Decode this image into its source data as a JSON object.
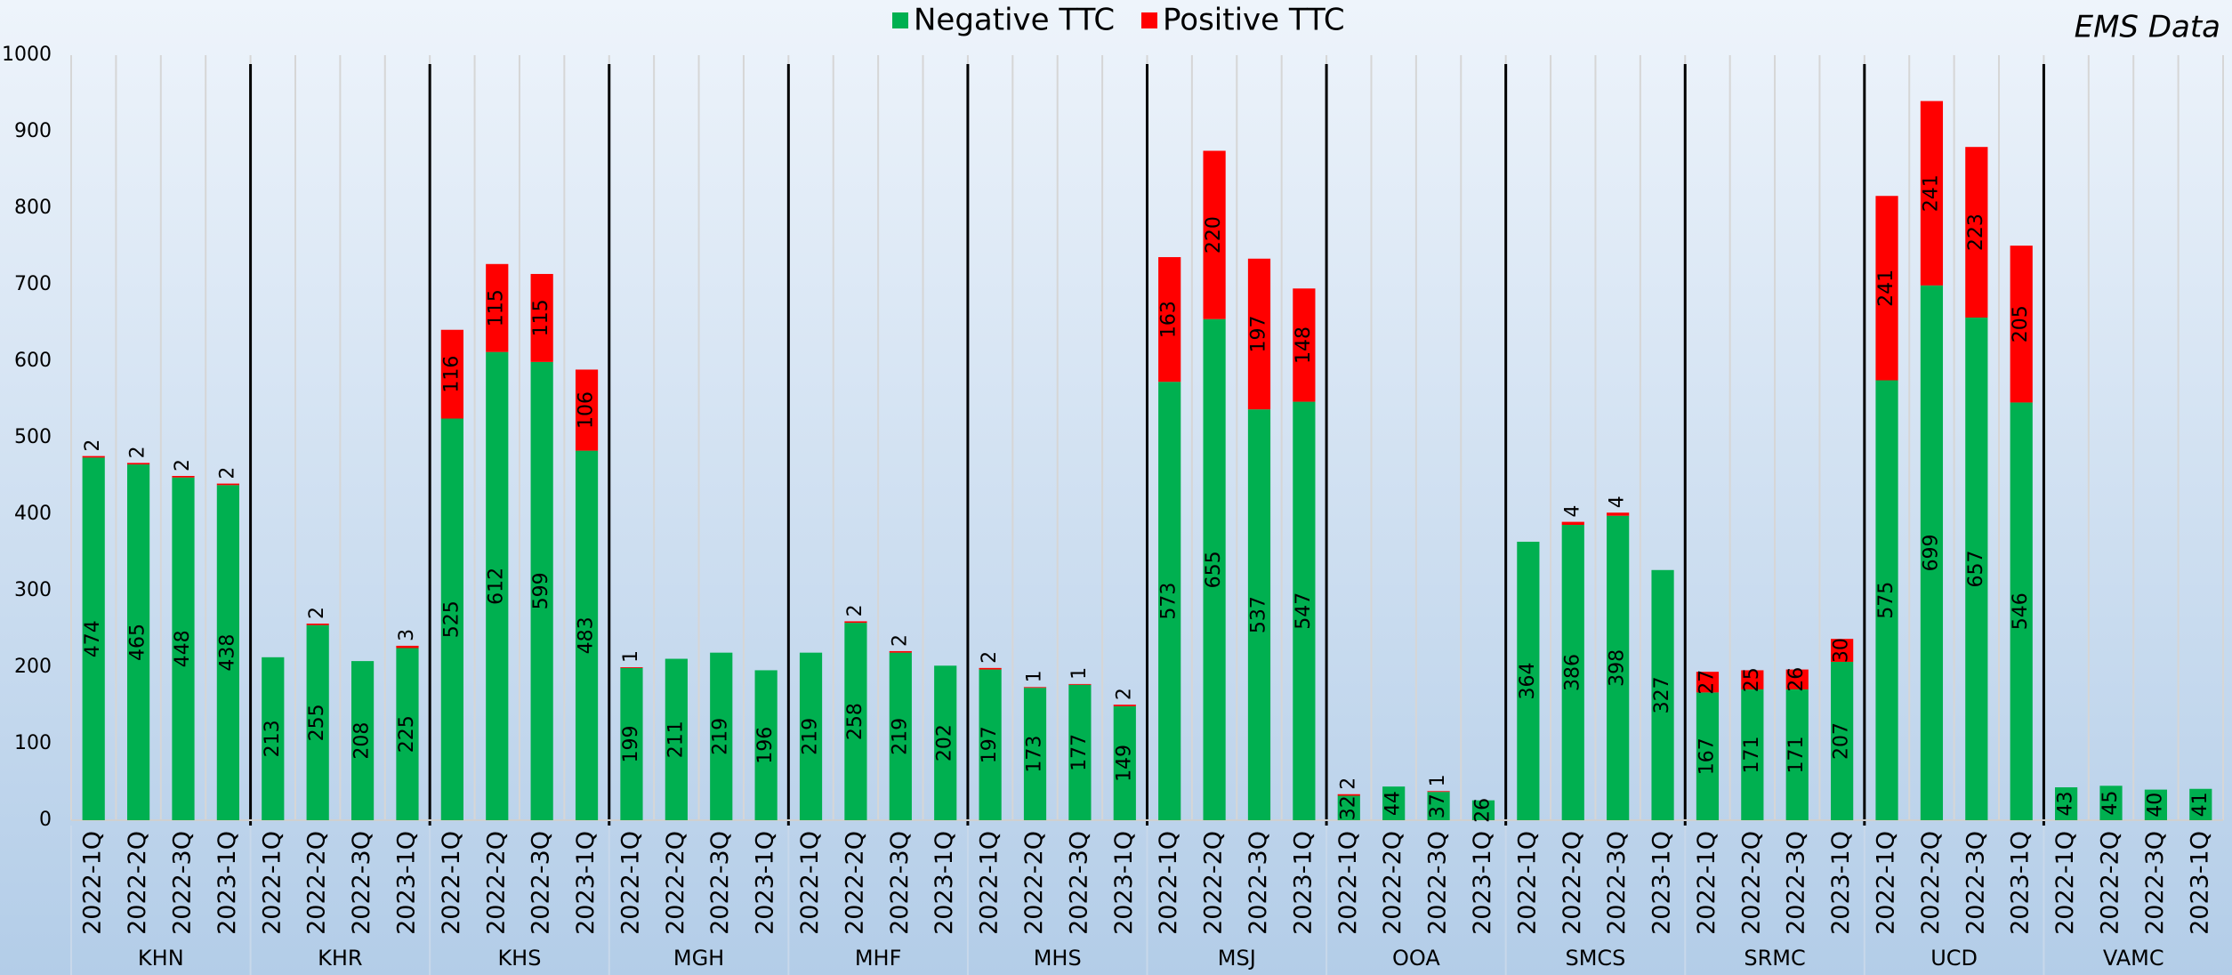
{
  "chart_data": {
    "type": "stacked-bar",
    "title": "EMS Data",
    "categories": [
      "2022-1Q",
      "2022-2Q",
      "2022-3Q",
      "2023-1Q",
      "2022-1Q",
      "2022-2Q",
      "2022-3Q",
      "2023-1Q",
      "2022-1Q",
      "2022-2Q",
      "2022-3Q",
      "2023-1Q",
      "2022-1Q",
      "2022-2Q",
      "2022-3Q",
      "2023-1Q",
      "2022-1Q",
      "2022-2Q",
      "2022-3Q",
      "2023-1Q",
      "2022-1Q",
      "2022-2Q",
      "2022-3Q",
      "2023-1Q",
      "2022-1Q",
      "2022-2Q",
      "2022-3Q",
      "2023-1Q",
      "2022-1Q",
      "2022-2Q",
      "2022-3Q",
      "2023-1Q",
      "2022-1Q",
      "2022-2Q",
      "2022-3Q",
      "2023-1Q",
      "2022-1Q",
      "2022-2Q",
      "2022-3Q",
      "2023-1Q",
      "2022-1Q",
      "2022-2Q",
      "2022-3Q",
      "2023-1Q",
      "2022-1Q",
      "2022-2Q",
      "2022-3Q",
      "2023-1Q"
    ],
    "groups": [
      "KHN",
      "KHR",
      "KHS",
      "MGH",
      "MHF",
      "MHS",
      "MSJ",
      "OOA",
      "SMCS",
      "SRMC",
      "UCD",
      "VAMC"
    ],
    "series": [
      {
        "name": "Negative TTC",
        "color": "#00b050",
        "values": [
          474,
          465,
          448,
          438,
          213,
          255,
          208,
          225,
          525,
          612,
          599,
          483,
          199,
          211,
          219,
          196,
          219,
          258,
          219,
          202,
          197,
          173,
          177,
          149,
          573,
          655,
          537,
          547,
          32,
          44,
          37,
          26,
          364,
          386,
          398,
          327,
          167,
          171,
          171,
          207,
          575,
          699,
          657,
          546,
          43,
          45,
          40,
          41
        ]
      },
      {
        "name": "Positive TTC",
        "color": "#ff0000",
        "values": [
          2,
          2,
          2,
          2,
          null,
          2,
          null,
          3,
          116,
          115,
          115,
          106,
          1,
          null,
          null,
          null,
          null,
          2,
          2,
          null,
          2,
          1,
          1,
          2,
          163,
          220,
          197,
          148,
          2,
          null,
          1,
          null,
          null,
          4,
          4,
          null,
          27,
          25,
          26,
          30,
          241,
          241,
          223,
          205,
          null,
          null,
          null,
          null
        ]
      }
    ],
    "ylim": [
      0,
      1000
    ],
    "yticks": [
      0,
      100,
      200,
      300,
      400,
      500,
      600,
      700,
      800,
      900,
      1000
    ],
    "grid": true,
    "legend": "top"
  }
}
